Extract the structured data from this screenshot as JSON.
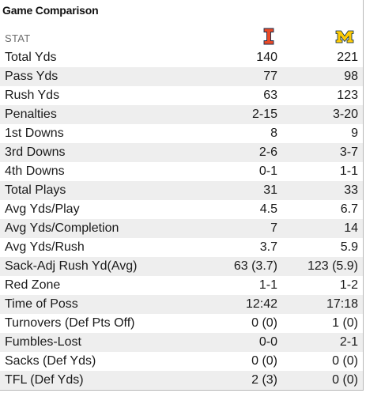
{
  "title": "Game Comparison",
  "header": {
    "stat_label": "STAT",
    "team1_logo_icon": "illinois-block-i-logo",
    "team2_logo_icon": "michigan-block-m-logo",
    "team1_color": "#e84a27",
    "team2_color": "#ffcb05"
  },
  "rows": [
    {
      "stat": "Total Yds",
      "team1": "140",
      "team2": "221"
    },
    {
      "stat": "Pass Yds",
      "team1": "77",
      "team2": "98"
    },
    {
      "stat": "Rush Yds",
      "team1": "63",
      "team2": "123"
    },
    {
      "stat": "Penalties",
      "team1": "2-15",
      "team2": "3-20"
    },
    {
      "stat": "1st Downs",
      "team1": "8",
      "team2": "9"
    },
    {
      "stat": "3rd Downs",
      "team1": "2-6",
      "team2": "3-7"
    },
    {
      "stat": "4th Downs",
      "team1": "0-1",
      "team2": "1-1"
    },
    {
      "stat": "Total Plays",
      "team1": "31",
      "team2": "33"
    },
    {
      "stat": "Avg Yds/Play",
      "team1": "4.5",
      "team2": "6.7"
    },
    {
      "stat": "Avg Yds/Completion",
      "team1": "7",
      "team2": "14"
    },
    {
      "stat": "Avg Yds/Rush",
      "team1": "3.7",
      "team2": "5.9"
    },
    {
      "stat": "Sack-Adj Rush Yd(Avg)",
      "team1": "63 (3.7)",
      "team2": "123 (5.9)"
    },
    {
      "stat": "Red Zone",
      "team1": "1-1",
      "team2": "1-2"
    },
    {
      "stat": "Time of Poss",
      "team1": "12:42",
      "team2": "17:18"
    },
    {
      "stat": "Turnovers (Def Pts Off)",
      "team1": "0 (0)",
      "team2": "1 (0)"
    },
    {
      "stat": "Fumbles-Lost",
      "team1": "0-0",
      "team2": "2-1"
    },
    {
      "stat": "Sacks (Def Yds)",
      "team1": "0 (0)",
      "team2": "0 (0)"
    },
    {
      "stat": "TFL (Def Yds)",
      "team1": "2 (3)",
      "team2": "0 (0)"
    }
  ]
}
